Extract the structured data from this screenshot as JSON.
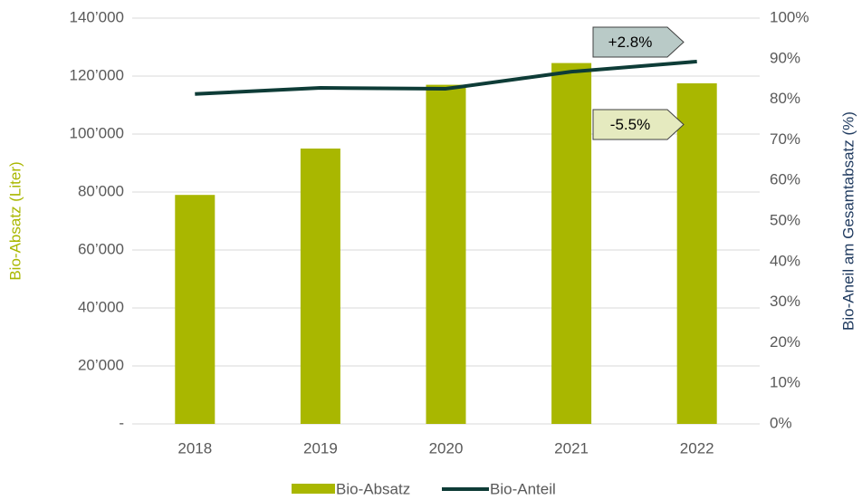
{
  "chart_data": {
    "type": "bar_line",
    "categories": [
      "2018",
      "2019",
      "2020",
      "2021",
      "2022"
    ],
    "series": [
      {
        "name": "Bio-Absatz",
        "type": "bar",
        "color": "#a9b700",
        "values": [
          79000,
          95000,
          117000,
          124500,
          117500
        ]
      },
      {
        "name": "Bio-Anteil",
        "type": "line",
        "axis": "y2",
        "color": "#0e3c37",
        "values": [
          81.3,
          82.8,
          82.6,
          86.8,
          89.3
        ]
      }
    ],
    "ylabel": "Bio-Absatz (Liter)",
    "y2label": "Bio-Aneil am Gesamtabsatz (%)",
    "ylim": [
      0,
      140000
    ],
    "yticks": [
      {
        "value": 0,
        "label": "-"
      },
      {
        "value": 20000,
        "label": "20’000"
      },
      {
        "value": 40000,
        "label": "40’000"
      },
      {
        "value": 60000,
        "label": "60’000"
      },
      {
        "value": 80000,
        "label": "80’000"
      },
      {
        "value": 100000,
        "label": "100’000"
      },
      {
        "value": 120000,
        "label": "120’000"
      },
      {
        "value": 140000,
        "label": "140’000"
      }
    ],
    "y2lim": [
      0,
      100
    ],
    "y2ticks": [
      {
        "value": 0,
        "label": "0%"
      },
      {
        "value": 10,
        "label": "10%"
      },
      {
        "value": 20,
        "label": "20%"
      },
      {
        "value": 30,
        "label": "30%"
      },
      {
        "value": 40,
        "label": "40%"
      },
      {
        "value": 50,
        "label": "50%"
      },
      {
        "value": 60,
        "label": "60%"
      },
      {
        "value": 70,
        "label": "70%"
      },
      {
        "value": 80,
        "label": "80%"
      },
      {
        "value": 90,
        "label": "90%"
      },
      {
        "value": 100,
        "label": "100%"
      }
    ],
    "grid": true,
    "legend": "bottom",
    "annotations": [
      {
        "text": "+2.8%",
        "color": "#b9cac7"
      },
      {
        "text": "-5.5%",
        "color": "#e5eabf"
      }
    ]
  }
}
